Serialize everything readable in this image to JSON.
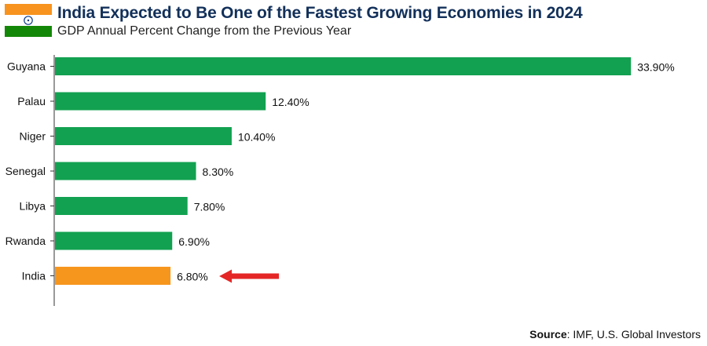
{
  "title": "India Expected to Be One of the Fastest Growing Economies in 2024",
  "subtitle": "GDP Annual Percent Change from the Previous Year",
  "source": {
    "label": "Source",
    "text": "IMF, U.S. Global Investors"
  },
  "flag_icon": "india-flag-icon",
  "colors": {
    "default_bar": "#12a150",
    "highlight_bar": "#f7961d",
    "arrow": "#e52626",
    "title": "#12305a"
  },
  "chart_data": {
    "type": "bar",
    "orientation": "horizontal",
    "categories": [
      "Guyana",
      "Palau",
      "Niger",
      "Senegal",
      "Libya",
      "Rwanda",
      "India"
    ],
    "values": [
      33.9,
      12.4,
      10.4,
      8.3,
      7.8,
      6.9,
      6.8
    ],
    "value_labels": [
      "33.90%",
      "12.40%",
      "10.40%",
      "8.30%",
      "7.80%",
      "6.90%",
      "6.80%"
    ],
    "highlight": "India",
    "xlim": [
      0,
      35
    ],
    "grid": false,
    "legend": "none"
  }
}
